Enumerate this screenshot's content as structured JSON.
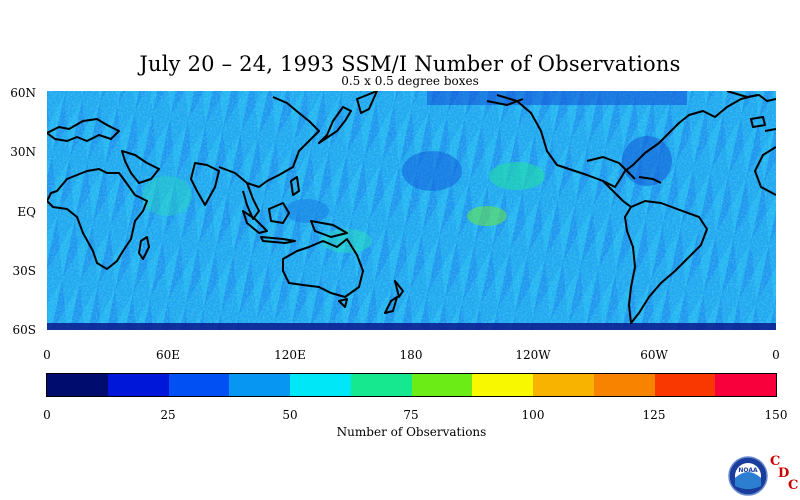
{
  "map": {
    "title": "July 20 – 24, 1993 SSM/I Number of Observations",
    "subtitle": "0.5 x 0.5 degree boxes",
    "lat_labels": [
      "60N",
      "30N",
      "EQ",
      "30S",
      "60S"
    ],
    "lon_labels": [
      "0",
      "60E",
      "120E",
      "180",
      "120W",
      "60W",
      "0"
    ],
    "colorbar": {
      "colors": [
        "#000c6e",
        "#0016d8",
        "#0050f4",
        "#0796f2",
        "#00e8f8",
        "#16e890",
        "#6cec16",
        "#f8f800",
        "#f8b300",
        "#f88300",
        "#f83800",
        "#f8003c"
      ],
      "tick_labels": [
        "0",
        "25",
        "50",
        "75",
        "100",
        "125",
        "150"
      ],
      "title": "Number of Observations",
      "range": [
        0,
        150
      ]
    },
    "logo": {
      "badge_text": "NOAA",
      "letters": [
        "C",
        "D",
        "C"
      ]
    }
  }
}
